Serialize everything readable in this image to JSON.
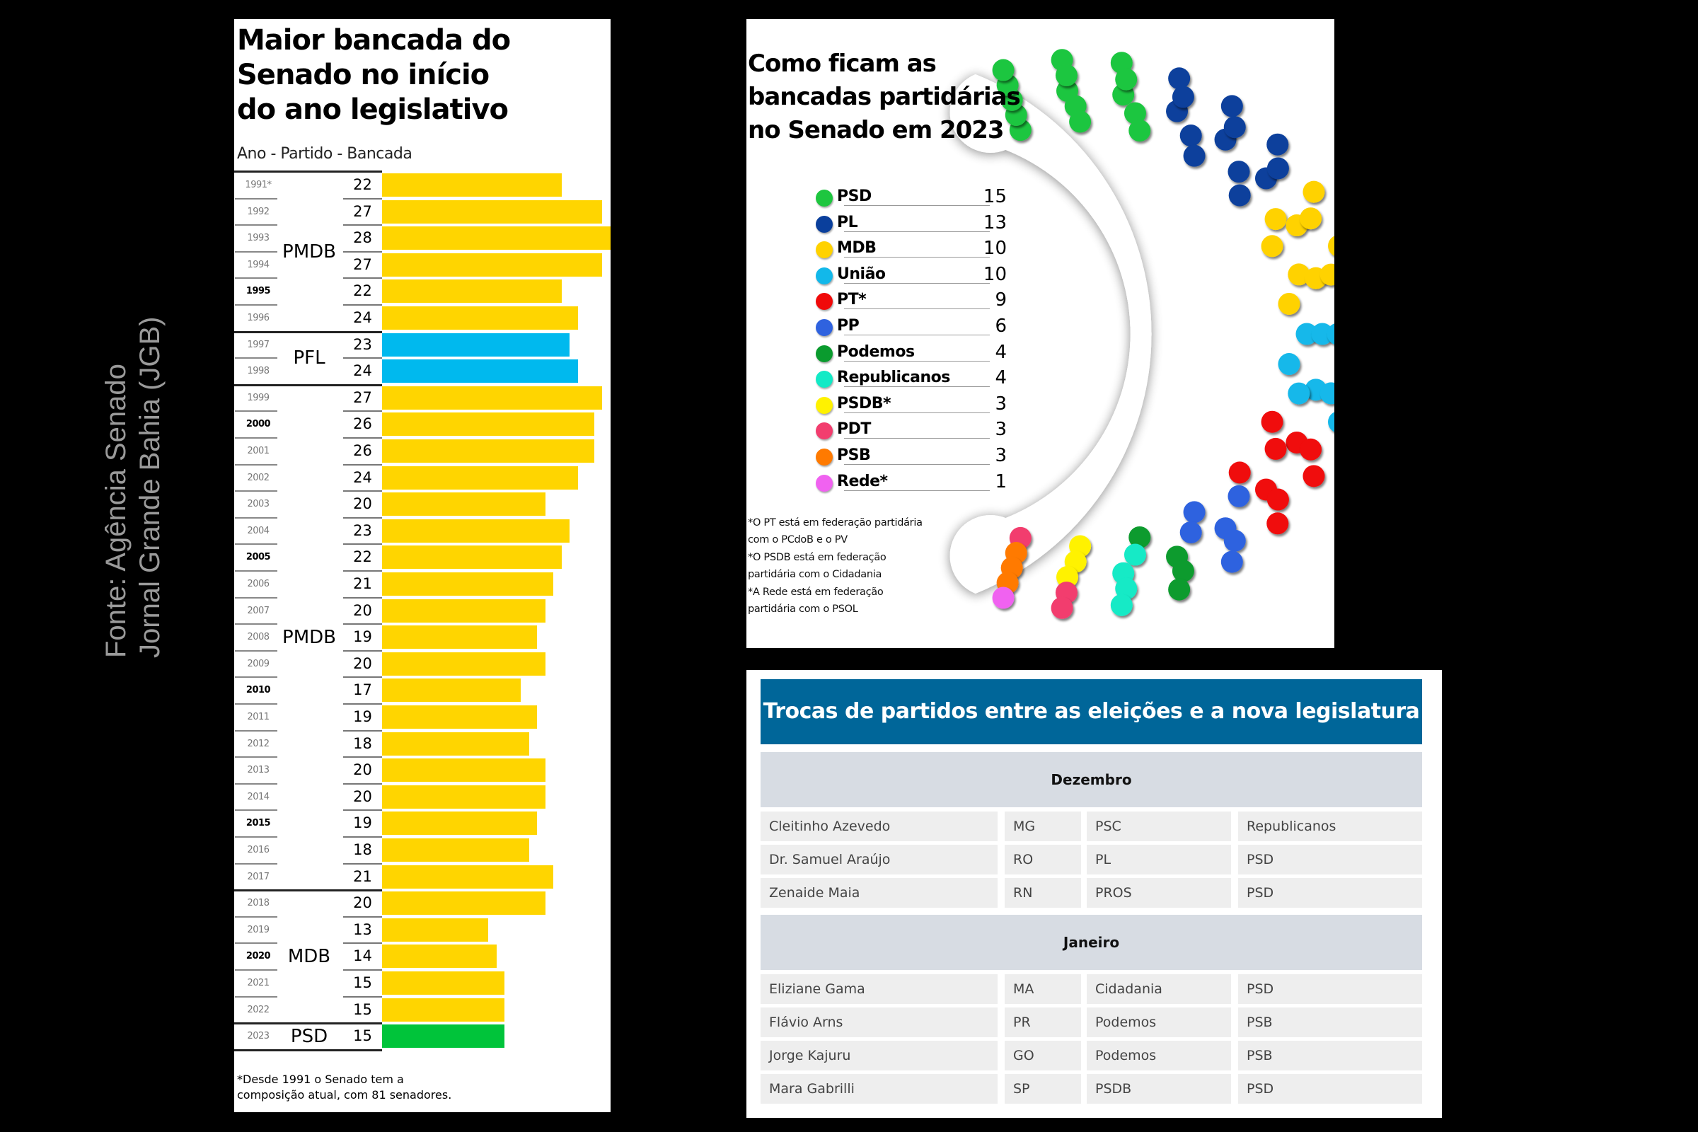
{
  "source_credit": {
    "line1": "Fonte: Agência Senado",
    "line2": "Jornal Grande Bahia (JGB)"
  },
  "chart_data": [
    {
      "type": "bar",
      "orientation": "horizontal",
      "title": "Maior bancada do Senado no início do ano legislativo",
      "title_lines": [
        "Maior bancada do",
        "Senado no início",
        "do ano  legislativo"
      ],
      "subtitle": "Ano - Partido - Bancada",
      "xlim": [
        0,
        28
      ],
      "categories": [
        "1991*",
        "1992",
        "1993",
        "1994",
        "1995",
        "1996",
        "1997",
        "1998",
        "1999",
        "2000",
        "2001",
        "2002",
        "2003",
        "2004",
        "2005",
        "2006",
        "2007",
        "2008",
        "2009",
        "2010",
        "2011",
        "2012",
        "2013",
        "2014",
        "2015",
        "2016",
        "2017",
        "2018",
        "2019",
        "2020",
        "2021",
        "2022",
        "2023"
      ],
      "values": [
        22,
        27,
        28,
        27,
        22,
        24,
        23,
        24,
        27,
        26,
        26,
        24,
        20,
        23,
        22,
        21,
        20,
        19,
        20,
        17,
        19,
        18,
        20,
        20,
        19,
        18,
        21,
        20,
        13,
        14,
        15,
        15,
        15
      ],
      "bold_years": [
        "1995",
        "2000",
        "2005",
        "2010",
        "2015",
        "2020"
      ],
      "party_groups": [
        {
          "party": "PMDB",
          "from": "1991*",
          "to": "1996",
          "color": "#ffd500"
        },
        {
          "party": "PFL",
          "from": "1997",
          "to": "1998",
          "color": "#00b9ee"
        },
        {
          "party": "PMDB",
          "from": "1999",
          "to": "2017",
          "color": "#ffd500"
        },
        {
          "party": "MDB",
          "from": "2018",
          "to": "2022",
          "color": "#ffd500"
        },
        {
          "party": "PSD",
          "from": "2023",
          "to": "2023",
          "color": "#00c43a"
        }
      ],
      "footnote_lines": [
        "*Desde 1991 o Senado tem a",
        "composição atual, com 81 senadores."
      ]
    },
    {
      "type": "parliament",
      "title": "Como ficam as bancadas partidárias no Senado em 2023",
      "title_lines": [
        "Como ficam as",
        "bancadas partidárias",
        "no Senado em 2023"
      ],
      "total_seats": 81,
      "parties": [
        {
          "name": "PSD",
          "seats": 15,
          "color": "#1ec63f"
        },
        {
          "name": "PL",
          "seats": 13,
          "color": "#0a3f9c"
        },
        {
          "name": "MDB",
          "seats": 10,
          "color": "#ffd200"
        },
        {
          "name": "União",
          "seats": 10,
          "color": "#12b8ea"
        },
        {
          "name": "PT*",
          "seats": 9,
          "color": "#f00a0a"
        },
        {
          "name": "PP",
          "seats": 6,
          "color": "#2f62df"
        },
        {
          "name": "Podemos",
          "seats": 4,
          "color": "#0a9b2e"
        },
        {
          "name": "Republicanos",
          "seats": 4,
          "color": "#12eac6"
        },
        {
          "name": "PSDB*",
          "seats": 3,
          "color": "#fff200"
        },
        {
          "name": "PDT",
          "seats": 3,
          "color": "#f23d6e"
        },
        {
          "name": "PSB",
          "seats": 3,
          "color": "#ff7a00"
        },
        {
          "name": "Rede*",
          "seats": 1,
          "color": "#f062f0"
        }
      ],
      "notes": [
        "*O PT está em federação partidária",
        "com o PCdoB e o PV",
        "*O PSDB está em federação",
        "partidária com o Cidadania",
        "*A Rede está em federação",
        "partidária com o PSOL"
      ]
    }
  ],
  "table": {
    "title": "Trocas de partidos entre as eleições e a nova legislatura",
    "header_color": "#006699",
    "groups": [
      {
        "label": "Dezembro",
        "rows": [
          [
            "Cleitinho Azevedo",
            "MG",
            "PSC",
            "Republicanos"
          ],
          [
            "Dr. Samuel Araújo",
            "RO",
            "PL",
            "PSD"
          ],
          [
            "Zenaide Maia",
            "RN",
            "PROS",
            "PSD"
          ]
        ]
      },
      {
        "label": "Janeiro",
        "rows": [
          [
            "Eliziane Gama",
            "MA",
            "Cidadania",
            "PSD"
          ],
          [
            "Flávio Arns",
            "PR",
            "Podemos",
            "PSB"
          ],
          [
            "Jorge Kajuru",
            "GO",
            "Podemos",
            "PSB"
          ],
          [
            "Mara Gabrilli",
            "SP",
            "PSDB",
            "PSD"
          ]
        ]
      }
    ]
  }
}
